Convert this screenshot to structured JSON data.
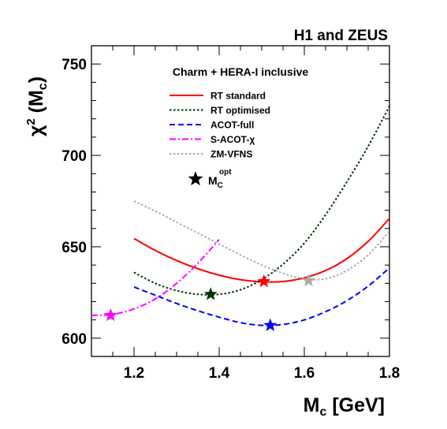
{
  "chart_data": {
    "type": "line",
    "experiment_label": "H1 and ZEUS",
    "title": "Charm + HERA-I inclusive",
    "xlabel": {
      "main": "M",
      "sub": "c",
      "rest": " [GeV]"
    },
    "ylabel": {
      "chi": "χ",
      "sup": "2",
      "open": " (M",
      "sub": "c",
      "close": ")"
    },
    "xlim": [
      1.1,
      1.8
    ],
    "ylim": [
      590,
      760
    ],
    "xticks": [
      1.2,
      1.4,
      1.6,
      1.8
    ],
    "xtick_labels": [
      "1.2",
      "1.4",
      "1.6",
      "1.8"
    ],
    "yticks": [
      600,
      650,
      700,
      750
    ],
    "ytick_labels": [
      "600",
      "650",
      "700",
      "750"
    ],
    "grid": false,
    "legend_position": "top-center",
    "series": [
      {
        "name": "RT standard",
        "color": "#ff0000",
        "dash": "solid",
        "x": [
          1.2,
          1.25,
          1.3,
          1.35,
          1.4,
          1.45,
          1.5,
          1.55,
          1.6,
          1.65,
          1.7,
          1.75,
          1.8
        ],
        "y": [
          654.5,
          648.0,
          642.5,
          638.0,
          634.5,
          632.0,
          630.8,
          631.0,
          633.0,
          637.0,
          643.5,
          653.0,
          665.5
        ],
        "optimum": {
          "x": 1.505,
          "y": 631.0
        }
      },
      {
        "name": "RT optimised",
        "color": "#003300",
        "dash": "dotted",
        "x": [
          1.2,
          1.25,
          1.3,
          1.35,
          1.4,
          1.45,
          1.5,
          1.55,
          1.6,
          1.65,
          1.7,
          1.75,
          1.8
        ],
        "y": [
          636.0,
          630.0,
          626.0,
          624.0,
          624.0,
          626.5,
          632.0,
          640.5,
          652.0,
          667.5,
          685.5,
          705.0,
          727.0
        ],
        "optimum": {
          "x": 1.38,
          "y": 624.0
        }
      },
      {
        "name": "ACOT-full",
        "color": "#0000ff",
        "dash": "dashed",
        "x": [
          1.2,
          1.25,
          1.3,
          1.35,
          1.4,
          1.45,
          1.5,
          1.55,
          1.6,
          1.65,
          1.7,
          1.75,
          1.8
        ],
        "y": [
          628.0,
          623.5,
          619.0,
          615.0,
          611.5,
          608.5,
          607.0,
          607.5,
          610.0,
          614.5,
          620.5,
          628.5,
          638.5
        ],
        "optimum": {
          "x": 1.52,
          "y": 607.0
        }
      },
      {
        "name": "S-ACOT-χ",
        "color": "#ff00ff",
        "dash": "dashdot",
        "x": [
          1.1,
          1.15,
          1.2,
          1.25,
          1.3,
          1.35,
          1.4
        ],
        "y": [
          612.5,
          613.0,
          616.0,
          621.5,
          630.0,
          641.0,
          654.0
        ],
        "optimum": {
          "x": 1.145,
          "y": 612.5
        }
      },
      {
        "name": "ZM-VFNS",
        "color": "#aaaaaa",
        "dash": "dotted",
        "x": [
          1.2,
          1.25,
          1.3,
          1.35,
          1.4,
          1.45,
          1.5,
          1.55,
          1.6,
          1.65,
          1.7,
          1.75,
          1.8
        ],
        "y": [
          675.0,
          669.5,
          663.5,
          657.5,
          651.5,
          645.5,
          640.0,
          635.5,
          632.5,
          632.5,
          637.0,
          645.5,
          658.5
        ],
        "optimum": {
          "x": 1.61,
          "y": 631.5
        }
      }
    ],
    "marker_legend": {
      "label": "M",
      "sub": "C",
      "sup": "opt",
      "color": "#000000"
    }
  }
}
